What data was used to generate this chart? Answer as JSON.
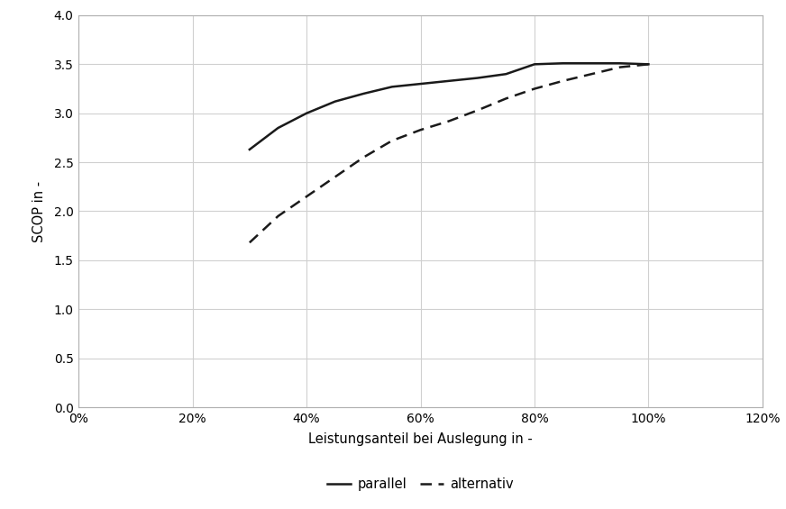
{
  "parallel_x": [
    0.3,
    0.35,
    0.4,
    0.45,
    0.5,
    0.55,
    0.6,
    0.65,
    0.7,
    0.75,
    0.8,
    0.85,
    0.9,
    0.95,
    1.0
  ],
  "parallel_y": [
    2.63,
    2.85,
    3.0,
    3.12,
    3.2,
    3.27,
    3.3,
    3.33,
    3.36,
    3.4,
    3.5,
    3.51,
    3.51,
    3.51,
    3.5
  ],
  "alternativ_x": [
    0.3,
    0.35,
    0.4,
    0.45,
    0.5,
    0.55,
    0.6,
    0.65,
    0.7,
    0.75,
    0.8,
    0.85,
    0.9,
    0.95,
    1.0
  ],
  "alternativ_y": [
    1.68,
    1.95,
    2.15,
    2.35,
    2.55,
    2.72,
    2.83,
    2.92,
    3.03,
    3.15,
    3.25,
    3.33,
    3.4,
    3.47,
    3.5
  ],
  "xlabel": "Leistungsanteil bei Auslegung in -",
  "ylabel": "SCOP in -",
  "xlim": [
    0.0,
    1.2
  ],
  "ylim": [
    0.0,
    4.0
  ],
  "xticks": [
    0.0,
    0.2,
    0.4,
    0.6,
    0.8,
    1.0,
    1.2
  ],
  "yticks": [
    0.0,
    0.5,
    1.0,
    1.5,
    2.0,
    2.5,
    3.0,
    3.5,
    4.0
  ],
  "line_color": "#1a1a1a",
  "legend_parallel": "parallel",
  "legend_alternativ": "alternativ",
  "background_color": "#ffffff",
  "grid_color": "#d0d0d0",
  "spine_color": "#b0b0b0"
}
